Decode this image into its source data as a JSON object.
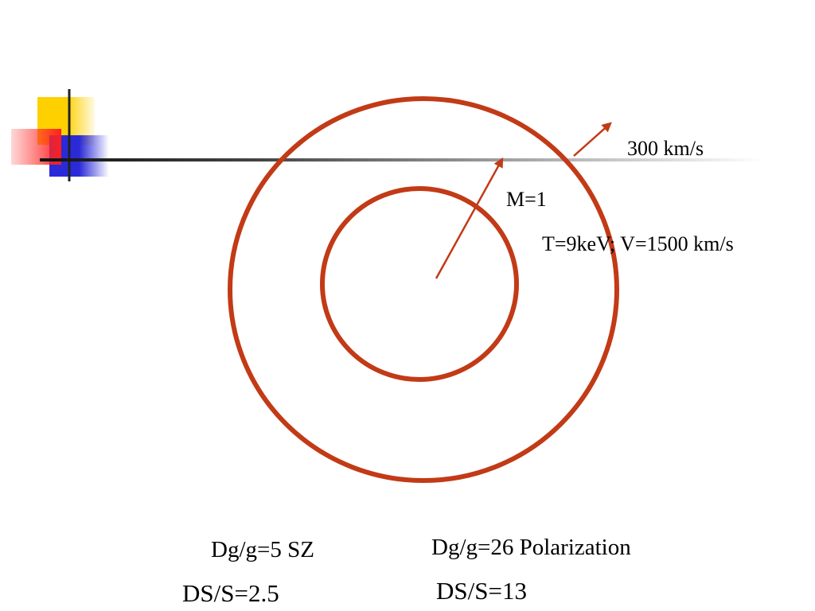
{
  "labels": {
    "outer_velocity": "300 km/s",
    "mach": "M=1",
    "cluster": "T=9keV; V=1500 km/s",
    "sz_ratio": "Dg/g=5 SZ",
    "sz_signal": "DS/S=2.5",
    "pol_ratio": "Dg/g=26 Polarization",
    "pol_signal": "DS/S=13"
  }
}
